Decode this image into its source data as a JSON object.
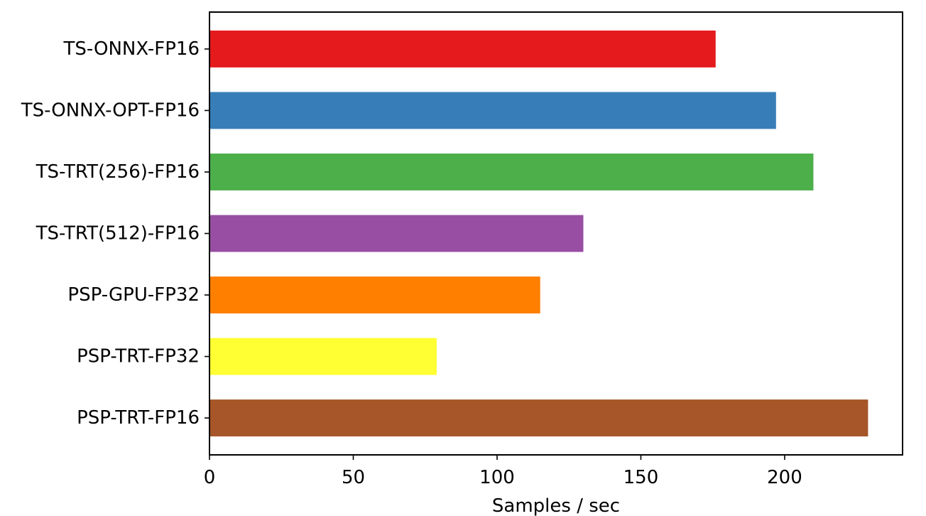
{
  "chart_data": {
    "type": "bar",
    "orientation": "horizontal",
    "title": "",
    "xlabel": "Samples / sec",
    "ylabel": "",
    "xlim": [
      0,
      241
    ],
    "x_ticks": [
      0,
      50,
      100,
      150,
      200
    ],
    "grid": false,
    "legend": "none",
    "categories": [
      "TS-ONNX-FP16",
      "TS-ONNX-OPT-FP16",
      "TS-TRT(256)-FP16",
      "TS-TRT(512)-FP16",
      "PSP-GPU-FP32",
      "PSP-TRT-FP32",
      "PSP-TRT-FP16"
    ],
    "values": [
      176,
      197,
      210,
      130,
      115,
      79,
      229
    ],
    "colors": [
      "#e41a1c",
      "#377eb8",
      "#4daf4a",
      "#984ea3",
      "#ff7f00",
      "#ffff33",
      "#a65628"
    ]
  }
}
